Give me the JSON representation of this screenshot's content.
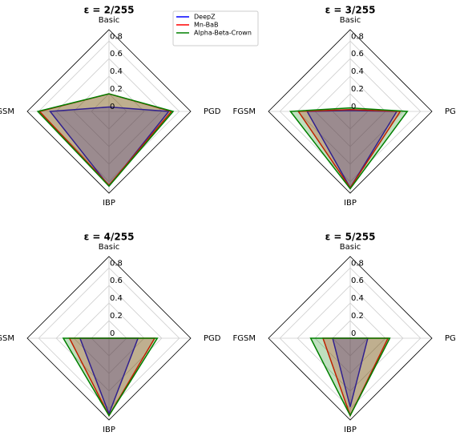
{
  "chart_data": [
    {
      "type": "radar",
      "title": "ε = 2/255",
      "categories": [
        "Basic",
        "PGD",
        "IBP",
        "FGSM"
      ],
      "ylim": [
        0,
        0.93
      ],
      "yticks": [
        0.0,
        0.2,
        0.4,
        0.6,
        0.8
      ],
      "series": [
        {
          "name": "DeepZ",
          "color": "#0000ff",
          "values": [
            0.05,
            0.68,
            0.85,
            0.67
          ]
        },
        {
          "name": "Mn-BaB",
          "color": "#ff0000",
          "values": [
            0.2,
            0.71,
            0.84,
            0.79
          ]
        },
        {
          "name": "Alpha-Beta-Crown",
          "color": "#008000",
          "values": [
            0.2,
            0.73,
            0.85,
            0.81
          ]
        }
      ]
    },
    {
      "type": "radar",
      "title": "ε = 3/255",
      "categories": [
        "Basic",
        "PGD",
        "IBP",
        "FGSM"
      ],
      "ylim": [
        0,
        0.93
      ],
      "yticks": [
        0.0,
        0.2,
        0.4,
        0.6,
        0.8
      ],
      "series": [
        {
          "name": "DeepZ",
          "color": "#0000ff",
          "values": [
            0.01,
            0.53,
            0.87,
            0.49
          ]
        },
        {
          "name": "Mn-BaB",
          "color": "#ff0000",
          "values": [
            0.02,
            0.57,
            0.87,
            0.59
          ]
        },
        {
          "name": "Alpha-Beta-Crown",
          "color": "#008000",
          "values": [
            0.04,
            0.65,
            0.88,
            0.68
          ]
        }
      ]
    },
    {
      "type": "radar",
      "title": "ε = 4/255",
      "categories": [
        "Basic",
        "PGD",
        "IBP",
        "FGSM"
      ],
      "ylim": [
        0,
        0.93
      ],
      "yticks": [
        0.0,
        0.2,
        0.4,
        0.6,
        0.8
      ],
      "series": [
        {
          "name": "DeepZ",
          "color": "#0000ff",
          "values": [
            0.0,
            0.33,
            0.86,
            0.33
          ]
        },
        {
          "name": "Mn-BaB",
          "color": "#ff0000",
          "values": [
            0.0,
            0.52,
            0.88,
            0.45
          ]
        },
        {
          "name": "Alpha-Beta-Crown",
          "color": "#008000",
          "values": [
            0.0,
            0.55,
            0.88,
            0.52
          ]
        }
      ]
    },
    {
      "type": "radar",
      "title": "ε = 5/255",
      "categories": [
        "Basic",
        "PGD",
        "IBP",
        "FGSM"
      ],
      "ylim": [
        0,
        0.93
      ],
      "yticks": [
        0.0,
        0.2,
        0.4,
        0.6,
        0.8
      ],
      "series": [
        {
          "name": "DeepZ",
          "color": "#0000ff",
          "values": [
            0.0,
            0.2,
            0.78,
            0.2
          ]
        },
        {
          "name": "Mn-BaB",
          "color": "#ff0000",
          "values": [
            0.0,
            0.43,
            0.88,
            0.31
          ]
        },
        {
          "name": "Alpha-Beta-Crown",
          "color": "#008000",
          "values": [
            0.0,
            0.45,
            0.88,
            0.45
          ]
        }
      ]
    }
  ]
}
